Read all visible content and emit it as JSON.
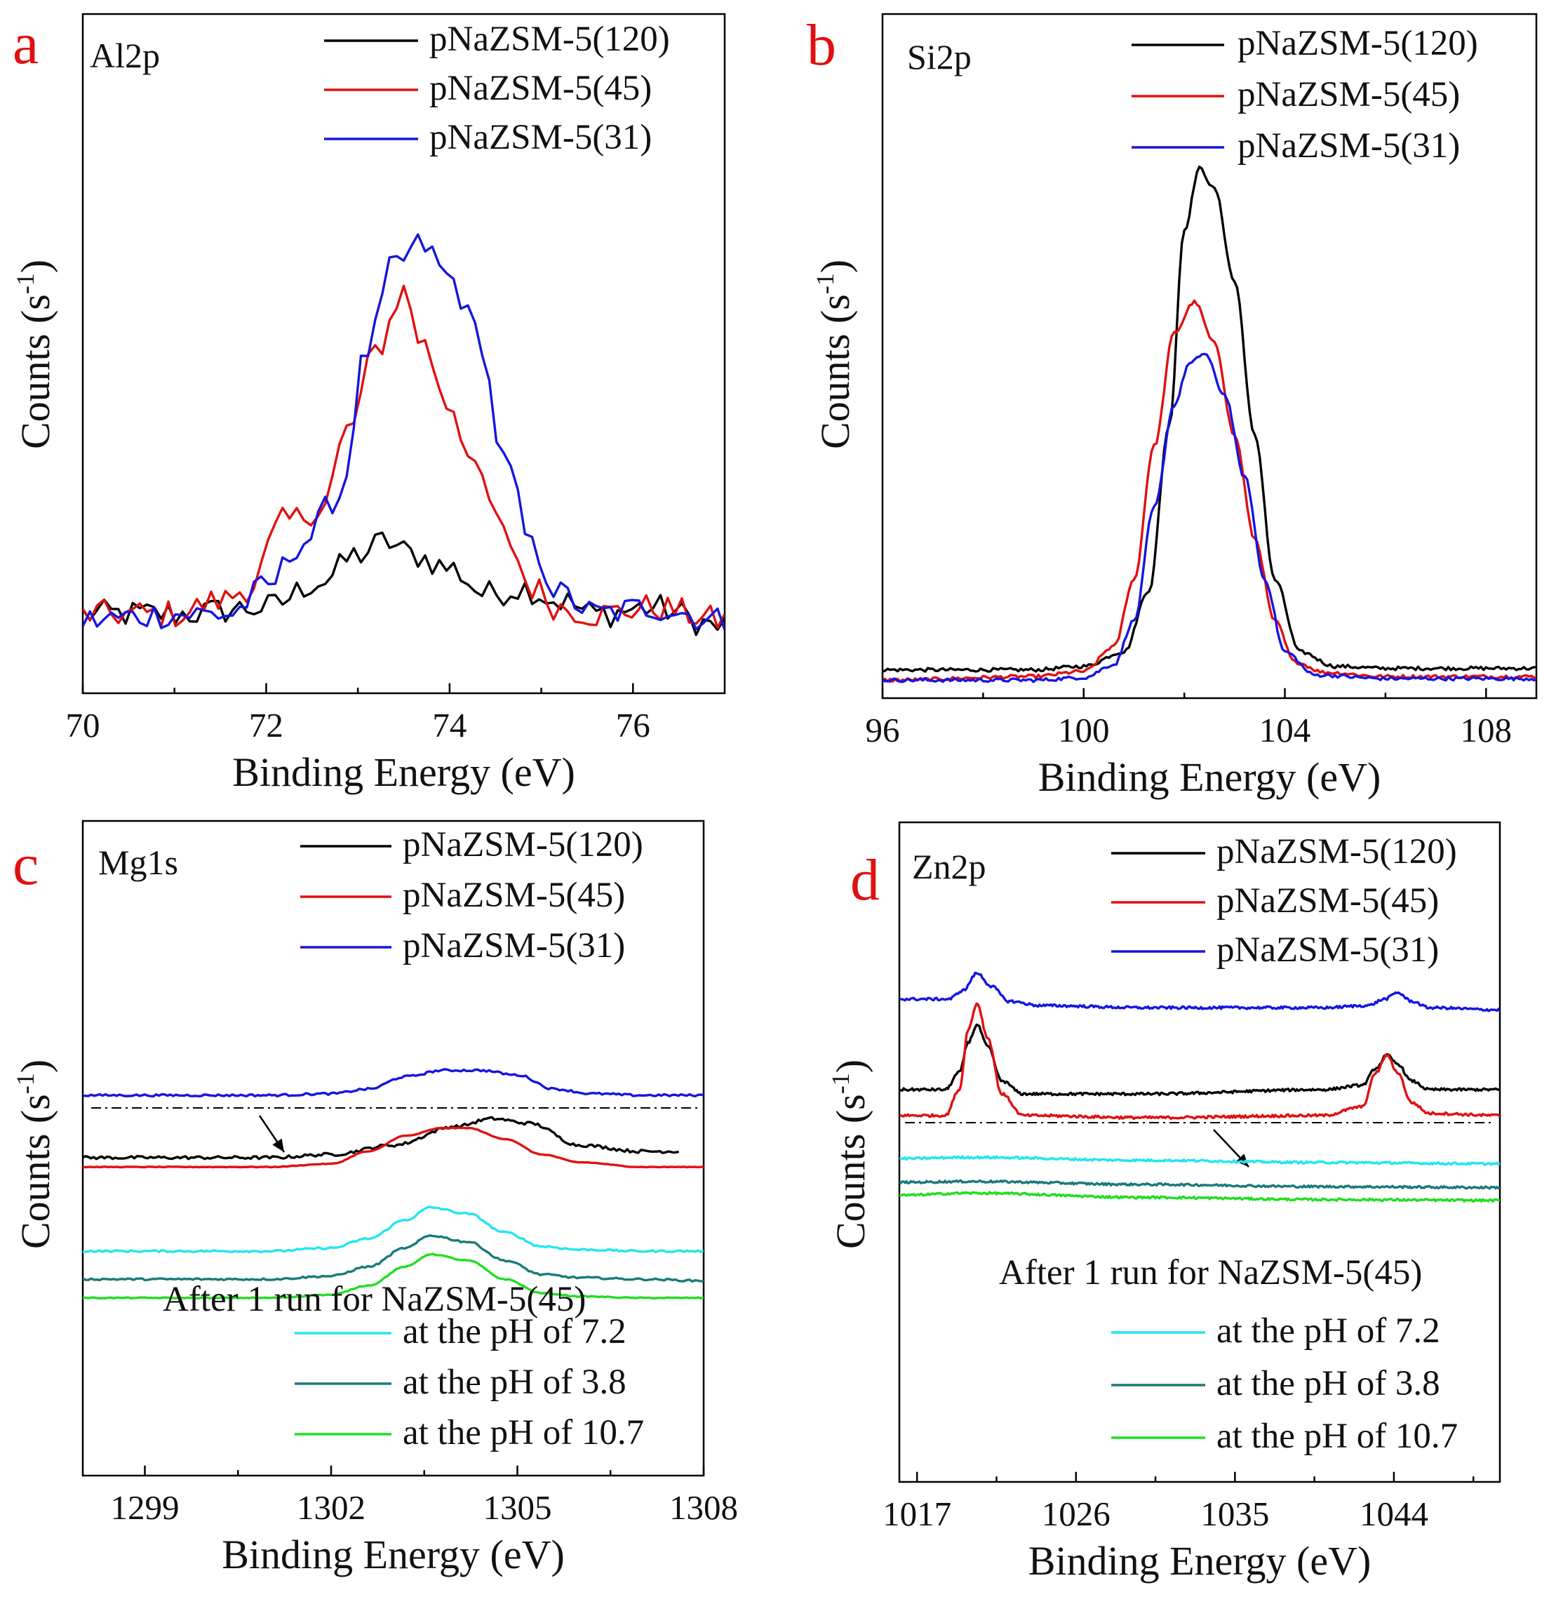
{
  "chart_data": [
    {
      "type": "line",
      "panel": "a",
      "element": "Al2p",
      "xlabel": "Binding Energy (eV)",
      "ylabel": "Counts (s",
      "ylabel_sup": "-1",
      "xlim": [
        70,
        77
      ],
      "xticks": [
        70,
        72,
        74,
        76
      ],
      "yticks_shown": false,
      "legend": "top-right",
      "series": [
        {
          "name": "pNaZSM-5(120)",
          "color": "#000000",
          "noise": 2.2,
          "x": [
            70,
            71,
            72,
            72.6,
            73.0,
            73.3,
            73.6,
            74.0,
            74.4,
            74.8,
            75.2,
            75.6,
            76.2,
            77
          ],
          "y": [
            4,
            4,
            5,
            9,
            13,
            15,
            13,
            11,
            7,
            8,
            6,
            4,
            5,
            2
          ]
        },
        {
          "name": "pNaZSM-5(45)",
          "color": "#e01010",
          "noise": 2.2,
          "x": [
            70,
            71,
            71.5,
            71.8,
            72.2,
            72.6,
            72.9,
            73.2,
            73.5,
            73.7,
            74.0,
            74.3,
            74.6,
            74.9,
            75.2,
            75.6,
            76.2,
            77
          ],
          "y": [
            4,
            4,
            6,
            8,
            18,
            20,
            32,
            44,
            53,
            45,
            36,
            25,
            16,
            8,
            5,
            4,
            5,
            3
          ]
        },
        {
          "name": "pNaZSM-5(31)",
          "color": "#1515e0",
          "noise": 2.2,
          "x": [
            70,
            71,
            71.6,
            72.0,
            72.4,
            72.8,
            73.1,
            73.4,
            73.7,
            74.0,
            74.3,
            74.6,
            74.9,
            75.2,
            75.6,
            76.2,
            77
          ],
          "y": [
            3,
            4,
            4,
            8,
            15,
            22,
            44,
            57,
            60,
            55,
            47,
            27,
            14,
            7,
            4,
            5,
            3
          ]
        }
      ]
    },
    {
      "type": "line",
      "panel": "b",
      "element": "Si2p",
      "xlabel": "Binding Energy (eV)",
      "ylabel": "Counts (s",
      "ylabel_sup": "-1",
      "xlim": [
        96,
        109
      ],
      "xticks": [
        96,
        100,
        104,
        108
      ],
      "yticks_shown": false,
      "legend": "top-right",
      "series": [
        {
          "name": "pNaZSM-5(120)",
          "color": "#000000",
          "noise": 0.35,
          "x": [
            96,
            99,
            100,
            100.8,
            101.3,
            101.7,
            102.0,
            102.3,
            102.6,
            103.0,
            103.4,
            103.8,
            104.3,
            105,
            106,
            109
          ],
          "y": [
            2.5,
            2.5,
            3.2,
            6,
            18,
            50,
            88,
            100,
            96,
            78,
            48,
            20,
            6,
            3.2,
            2.8,
            2.8
          ]
        },
        {
          "name": "pNaZSM-5(45)",
          "color": "#e01010",
          "noise": 0.35,
          "x": [
            96,
            99,
            100,
            100.6,
            101.0,
            101.4,
            101.8,
            102.2,
            102.6,
            103.0,
            103.4,
            103.8,
            104.2,
            104.8,
            106,
            109
          ],
          "y": [
            0.5,
            1.2,
            2.2,
            7,
            20,
            46,
            68,
            74,
            66,
            48,
            28,
            12,
            4,
            2,
            1.2,
            1.2
          ]
        },
        {
          "name": "pNaZSM-5(31)",
          "color": "#1515e0",
          "noise": 0.35,
          "x": [
            96,
            99,
            100,
            100.6,
            101.0,
            101.4,
            101.8,
            102.1,
            102.4,
            102.8,
            103.2,
            103.6,
            104.0,
            104.6,
            106,
            109
          ],
          "y": [
            0.5,
            0.5,
            1.0,
            3.5,
            12,
            34,
            54,
            62,
            64,
            56,
            40,
            20,
            6,
            1.5,
            0.8,
            0.8
          ]
        }
      ]
    },
    {
      "type": "line",
      "panel": "c",
      "element": "Mg1s",
      "xlabel": "Binding Energy (eV)",
      "ylabel": "Counts (s",
      "ylabel_sup": "-1",
      "xlim": [
        1298,
        1308
      ],
      "xticks": [
        1299,
        1302,
        1305,
        1308
      ],
      "yticks_shown": false,
      "legend": "top-right",
      "note": "After 1 run for NaZSM-5(45)",
      "series": [
        {
          "name": "pNaZSM-5(120)",
          "color": "#000000",
          "noise": 0.5,
          "x_end": 1307.6,
          "x": [
            1298,
            1301,
            1302,
            1303,
            1304,
            1304.6,
            1305.2,
            1306,
            1307,
            1307.6
          ],
          "y": [
            60,
            60,
            61,
            64,
            70,
            72.5,
            71,
            64,
            62,
            62
          ]
        },
        {
          "name": "pNaZSM-5(45)",
          "color": "#e01010",
          "noise": 0.1,
          "x": [
            1298,
            1301,
            1302,
            1302.6,
            1303.2,
            1303.8,
            1304.2,
            1304.8,
            1305.4,
            1306,
            1307,
            1308
          ],
          "y": [
            57,
            57,
            58,
            62,
            67,
            69.5,
            69.5,
            66,
            61,
            58.5,
            57,
            57
          ]
        },
        {
          "name": "pNaZSM-5(31)",
          "color": "#1515e0",
          "noise": 0.35,
          "x": [
            1298,
            1301,
            1302,
            1302.6,
            1303.2,
            1303.8,
            1304.4,
            1305,
            1305.6,
            1306.2,
            1307,
            1308
          ],
          "y": [
            80,
            80,
            80.5,
            82,
            86,
            88,
            88,
            86.5,
            82,
            80.5,
            80,
            80
          ]
        },
        {
          "name": "at the pH of 7.2",
          "color": "#22e6f0",
          "noise": 0.3,
          "x": [
            1298,
            1301,
            1302,
            1302.6,
            1303.2,
            1303.6,
            1304.2,
            1304.8,
            1305.4,
            1306,
            1307,
            1308
          ],
          "y": [
            30,
            30,
            31,
            34,
            40,
            44,
            42,
            36,
            31.5,
            30.5,
            30,
            30
          ]
        },
        {
          "name": "at the pH of 3.8",
          "color": "#1a7a7a",
          "noise": 0.3,
          "x": [
            1298,
            1301,
            1302,
            1302.6,
            1303.2,
            1303.6,
            1304.2,
            1304.8,
            1305.4,
            1306,
            1307,
            1308
          ],
          "y": [
            21,
            21,
            22,
            25,
            31,
            35,
            33,
            27,
            22.5,
            21.5,
            21,
            20.5
          ]
        },
        {
          "name": "at the pH of 10.7",
          "color": "#22dd22",
          "noise": 0.15,
          "x": [
            1298,
            1301,
            1302,
            1302.6,
            1303.2,
            1303.6,
            1304.2,
            1304.8,
            1305.4,
            1306,
            1307,
            1308
          ],
          "y": [
            15,
            15,
            16,
            19,
            25,
            29,
            27,
            21,
            16.5,
            15.5,
            15,
            15
          ]
        }
      ]
    },
    {
      "type": "line",
      "panel": "d",
      "element": "Zn2p",
      "xlabel": "Binding Energy (eV)",
      "ylabel": "Counts (s",
      "ylabel_sup": "-1",
      "xlim": [
        1016,
        1050
      ],
      "xticks": [
        1017,
        1026,
        1035,
        1044
      ],
      "yticks_shown": false,
      "legend": "top-right",
      "note": "After 1 run for NaZSM-5(45)",
      "series": [
        {
          "name": "pNaZSM-5(120)",
          "color": "#000000",
          "noise": 0.3,
          "x": [
            1016,
            1018.6,
            1019.4,
            1019.9,
            1020.4,
            1021.0,
            1021.8,
            1023,
            1030,
            1040,
            1042.2,
            1043.0,
            1043.6,
            1044.2,
            1045.0,
            1046,
            1050
          ],
          "y": [
            56,
            56,
            60,
            67,
            71,
            66,
            58,
            55,
            55,
            56,
            57,
            61,
            64,
            62,
            58,
            56,
            56
          ]
        },
        {
          "name": "pNaZSM-5(45)",
          "color": "#e01010",
          "noise": 0.3,
          "x": [
            1016,
            1018.6,
            1019.4,
            1019.9,
            1020.4,
            1021.0,
            1021.8,
            1023,
            1030,
            1040,
            1042.2,
            1043.0,
            1043.6,
            1044.2,
            1045.0,
            1046,
            1050
          ],
          "y": [
            50,
            50,
            56,
            70,
            76,
            68,
            55,
            50,
            49.5,
            50,
            52,
            60,
            64,
            60,
            53,
            50.5,
            50
          ]
        },
        {
          "name": "pNaZSM-5(31)",
          "color": "#1515e0",
          "noise": 0.3,
          "x": [
            1016,
            1018.8,
            1019.6,
            1020.4,
            1021.2,
            1022.2,
            1024,
            1030,
            1040,
            1042.5,
            1043.5,
            1044.2,
            1045.0,
            1046,
            1050
          ],
          "y": [
            77,
            77,
            79,
            83,
            80,
            76.5,
            75.5,
            75,
            75,
            75.5,
            77,
            78.5,
            76.5,
            75,
            74.5
          ]
        },
        {
          "name": "at the pH of 7.2",
          "color": "#22e6f0",
          "noise": 0.25,
          "x": [
            1016,
            1020,
            1030,
            1040,
            1050
          ],
          "y": [
            40,
            40.3,
            39.6,
            39.1,
            38.8
          ]
        },
        {
          "name": "at the pH of 3.8",
          "color": "#1a7a7a",
          "noise": 0.25,
          "x": [
            1016,
            1020,
            1030,
            1040,
            1050
          ],
          "y": [
            34.5,
            34.7,
            34,
            33.5,
            33.3
          ]
        },
        {
          "name": "at the pH of 10.7",
          "color": "#22dd22",
          "noise": 0.25,
          "x": [
            1016,
            1020,
            1030,
            1040,
            1050
          ],
          "y": [
            31.5,
            32,
            31,
            30.5,
            30.3
          ]
        }
      ]
    }
  ]
}
